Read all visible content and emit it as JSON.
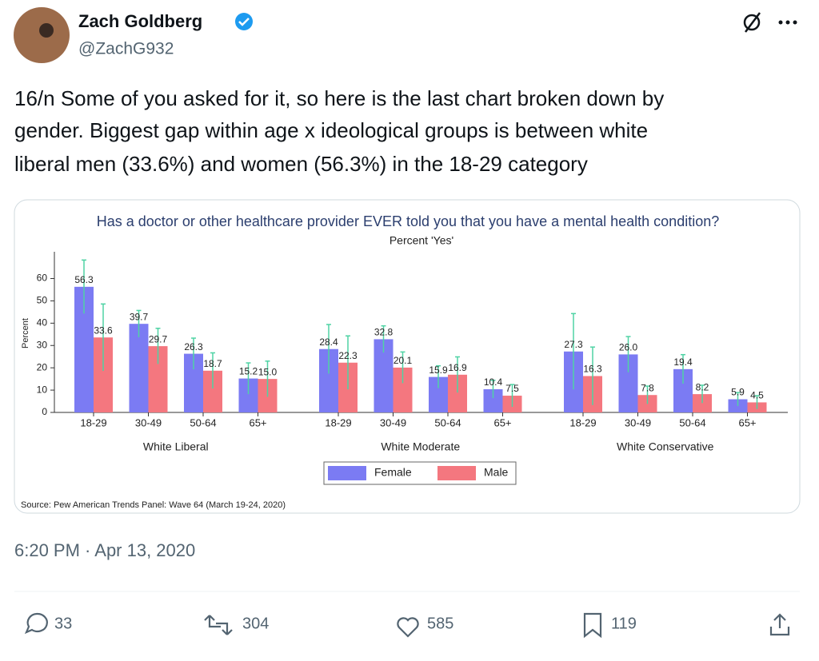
{
  "tweet": {
    "author": "Zach Goldberg",
    "handle": "@ZachG932",
    "text_lines": [
      "16/n Some of you asked for it, so here is the last chart broken down by",
      "gender. Biggest gap within age x ideological groups is between white",
      "liberal men (33.6%) and women (56.3%)  in the 18-29 category"
    ],
    "timestamp": "6:20 PM · Apr 13, 2020",
    "replies": 33,
    "reposts": 304,
    "likes": 585,
    "bookmarks": 119
  },
  "chart_data": {
    "type": "bar",
    "title": "Has a doctor or other healthcare provider EVER told you that you have a mental health condition?",
    "subtitle": "Percent 'Yes'",
    "y_label": "Percent",
    "groups": [
      "White Liberal",
      "White Moderate",
      "White Conservative"
    ],
    "categories": [
      "18-29",
      "30-49",
      "50-64",
      "65+",
      "18-29",
      "30-49",
      "50-64",
      "65+",
      "18-29",
      "30-49",
      "50-64",
      "65+"
    ],
    "series": [
      {
        "name": "Female",
        "color": "#7b7bf3",
        "values": [
          56.3,
          39.7,
          26.3,
          15.2,
          28.4,
          32.8,
          15.9,
          10.4,
          27.3,
          26.0,
          19.4,
          5.9
        ],
        "value_labels": [
          "56.3",
          "39.7",
          "26.3",
          "15.2",
          "28.4",
          "32.8",
          "15.9",
          "10.4",
          "27.3",
          "26.0",
          "19.4",
          "5.9"
        ],
        "errors": [
          12,
          6,
          7,
          7,
          11,
          6,
          5,
          4,
          17,
          8,
          6.5,
          3
        ]
      },
      {
        "name": "Male",
        "color": "#f4777f",
        "values": [
          33.6,
          29.7,
          18.7,
          15.0,
          22.3,
          20.1,
          16.9,
          7.5,
          16.3,
          7.8,
          8.2,
          4.5
        ],
        "value_labels": [
          "33.6",
          "29.7",
          "18.7",
          "15.0",
          "22.3",
          "20.1",
          "16.9",
          "7.5",
          "16.3",
          "7.8",
          "8.2",
          "4.5"
        ],
        "errors": [
          15,
          8,
          8,
          8,
          12,
          7,
          8,
          5,
          13,
          4,
          4,
          3
        ]
      }
    ],
    "error_color": "#4fd3a4",
    "ylim": [
      0,
      72
    ],
    "yticks": [
      0,
      10,
      20,
      30,
      40,
      50,
      60
    ],
    "source": "Source: Pew American Trends Panel: Wave 64 (March 19-24, 2020)"
  }
}
